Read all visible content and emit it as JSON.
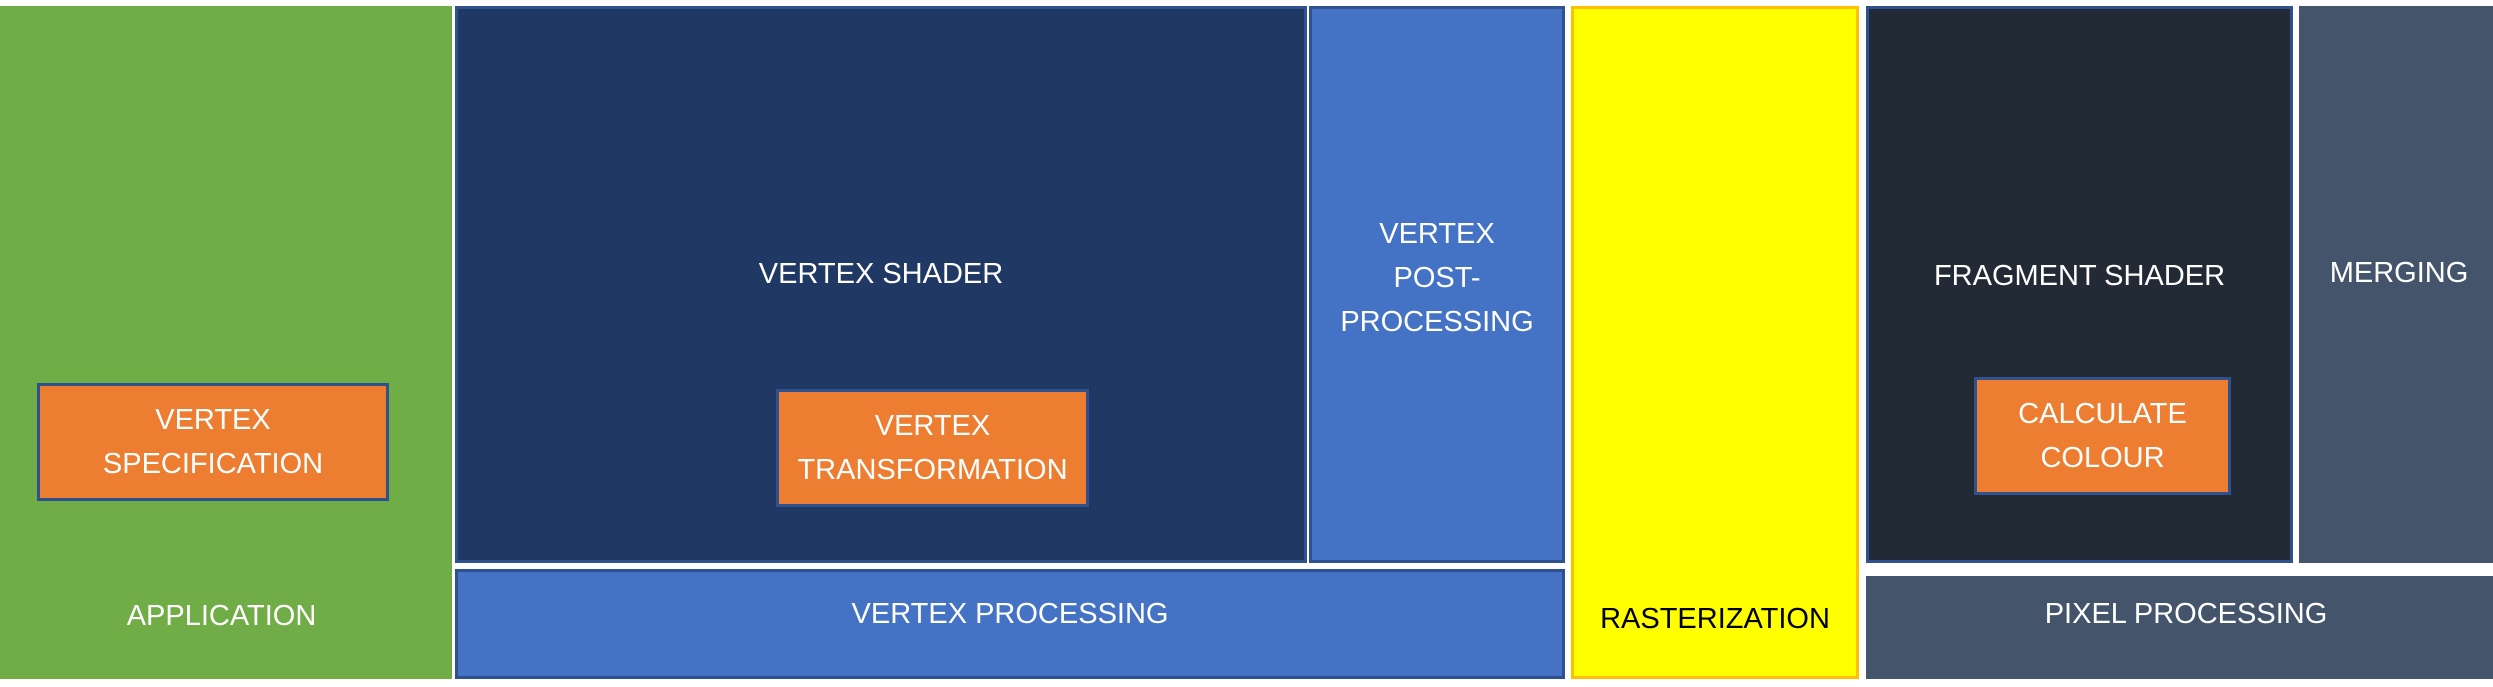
{
  "stages": {
    "application": "APPLICATION",
    "vertex_specification": "VERTEX\nSPECIFICATION",
    "vertex_shader": "VERTEX SHADER",
    "vertex_transformation": "VERTEX\nTRANSFORMATION",
    "vertex_post_processing": "VERTEX\nPOST-\nPROCESSING",
    "vertex_processing": "VERTEX PROCESSING",
    "rasterization": "RASTERIZATION",
    "fragment_shader": "FRAGMENT SHADER",
    "calculate_colour": "CALCULATE\nCOLOUR",
    "merging": "MERGING",
    "pixel_processing": "PIXEL PROCESSING"
  },
  "colors": {
    "application": "#70ad47",
    "vertex_shader": "#1f3864",
    "vertex_blue": "#4472c4",
    "rasterization": "#ffff00",
    "fragment_shader": "#222a35",
    "merging": "#44546a",
    "subtask": "#ed7d31"
  }
}
